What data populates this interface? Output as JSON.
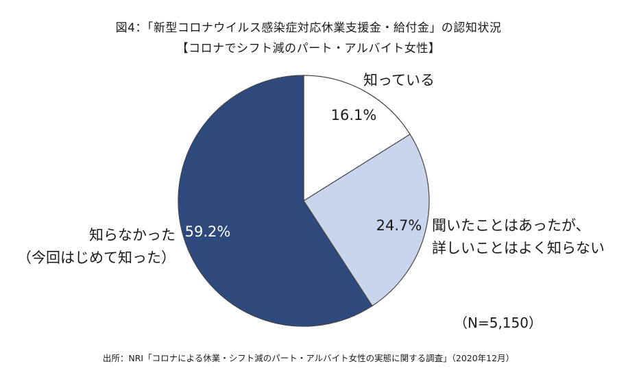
{
  "title": "図4：「新型コロナウイルス感染症対応休業支援金・給付金」の認知状況",
  "subtitle": "【コロナでシフト減のパート・アルバイト女性】",
  "sample_size": "（N=5,150）",
  "source": "出所：NRI「コロナによる休業・シフト減のパート・アルバイト女性の実態に関する調査」（2020年12月）",
  "colors": {
    "known": "#ffffff",
    "heard": "#c9d5ec",
    "unknown": "#2e4a7d",
    "outline": "#444444"
  },
  "chart_data": {
    "type": "pie",
    "slices": [
      {
        "label_lines": [
          "知っている"
        ],
        "value": 16.1,
        "value_label": "16.1%",
        "color": "#ffffff"
      },
      {
        "label_lines": [
          "聞いたことはあったが、",
          "詳しいことはよく知らない"
        ],
        "value": 24.7,
        "value_label": "24.7%",
        "color": "#c9d5ec"
      },
      {
        "label_lines": [
          "知らなかった",
          "（今回はじめて知った）"
        ],
        "value": 59.2,
        "value_label": "59.2%",
        "color": "#2e4a7d"
      }
    ]
  }
}
